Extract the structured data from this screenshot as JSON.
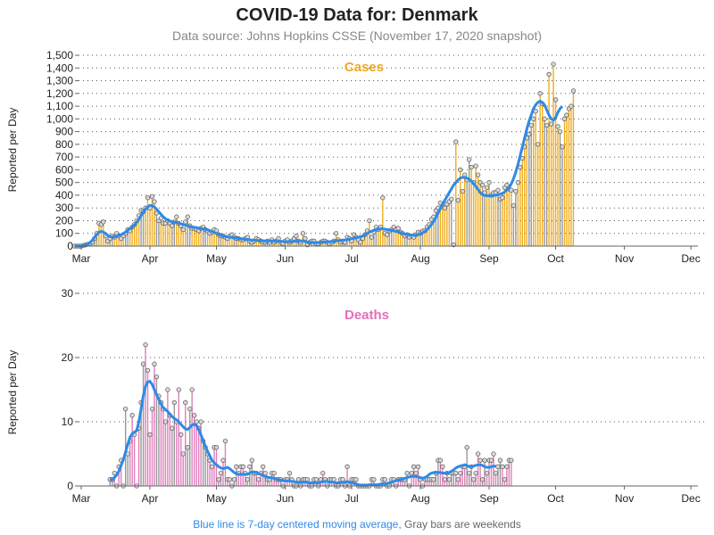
{
  "header": {
    "title": "COVID-19 Data for: Denmark",
    "subtitle": "Data source: Johns Hopkins CSSE (November 17, 2020 snapshot)"
  },
  "footer": {
    "blue_note": "Blue line is 7-day centered moving average,",
    "gray_note": "Gray bars are weekends"
  },
  "colors": {
    "cases": "#f0ad1e",
    "deaths": "#e07fbd",
    "average_line": "#2e8ae6",
    "weekend": "#999999"
  },
  "chart_data": [
    {
      "type": "bar",
      "title": "Cases",
      "ylabel": "Reported per Day",
      "xlabel": "",
      "ylim": [
        0,
        1500
      ],
      "yticks": [
        0,
        100,
        200,
        300,
        400,
        500,
        600,
        700,
        800,
        900,
        1000,
        1100,
        1200,
        1300,
        1400,
        1500
      ],
      "ytick_labels": [
        "0",
        "100",
        "200",
        "300",
        "400",
        "500",
        "600",
        "700",
        "800",
        "900",
        "1,000",
        "1,100",
        "1,200",
        "1,300",
        "1,400",
        "1,500"
      ],
      "xticks": [
        "Mar",
        "Apr",
        "May",
        "Jun",
        "Jul",
        "Aug",
        "Sep",
        "Oct",
        "Nov",
        "Dec"
      ],
      "grid": "horizontal dotted",
      "start_date": "2020-02-27",
      "series": [
        {
          "name": "Reported per Day",
          "values": [
            0,
            0,
            0,
            0,
            5,
            10,
            15,
            20,
            30,
            60,
            100,
            180,
            170,
            190,
            80,
            40,
            60,
            80,
            70,
            100,
            80,
            60,
            80,
            100,
            130,
            120,
            150,
            170,
            200,
            240,
            280,
            270,
            300,
            380,
            300,
            390,
            350,
            260,
            200,
            220,
            180,
            180,
            200,
            180,
            160,
            190,
            230,
            180,
            160,
            130,
            190,
            230,
            160,
            140,
            140,
            130,
            120,
            140,
            150,
            130,
            120,
            100,
            110,
            130,
            120,
            90,
            80,
            80,
            70,
            60,
            80,
            90,
            70,
            60,
            60,
            50,
            50,
            60,
            70,
            40,
            30,
            40,
            60,
            50,
            40,
            30,
            30,
            40,
            30,
            50,
            30,
            40,
            60,
            30,
            20,
            40,
            50,
            30,
            40,
            60,
            80,
            40,
            30,
            100,
            60,
            10,
            30,
            40,
            40,
            20,
            20,
            30,
            40,
            40,
            30,
            20,
            30,
            40,
            100,
            50,
            30,
            40,
            30,
            70,
            60,
            40,
            90,
            70,
            50,
            30,
            60,
            90,
            120,
            200,
            70,
            110,
            150,
            130,
            150,
            380,
            100,
            90,
            120,
            130,
            150,
            130,
            140,
            110,
            100,
            80,
            90,
            70,
            80,
            70,
            90,
            110,
            100,
            120,
            120,
            150,
            170,
            210,
            230,
            280,
            300,
            340,
            310,
            300,
            330,
            350,
            370,
            10,
            820,
            360,
            600,
            430,
            560,
            520,
            680,
            620,
            500,
            630,
            560,
            500,
            480,
            420,
            460,
            500,
            400,
            420,
            420,
            440,
            370,
            380,
            460,
            480,
            450,
            440,
            320,
            430,
            500,
            620,
            690,
            780,
            850,
            880,
            950,
            1000,
            1060,
            800,
            1200,
            1120,
            1000,
            950,
            1350,
            960,
            1430,
            1150,
            940,
            900,
            780,
            1000,
            1030,
            1080,
            1100,
            1220
          ]
        }
      ],
      "moving_average": [
        0,
        0,
        0,
        0,
        5,
        10,
        15,
        28,
        46,
        70,
        90,
        110,
        115,
        110,
        100,
        85,
        75,
        70,
        72,
        78,
        85,
        90,
        100,
        110,
        125,
        138,
        150,
        165,
        185,
        210,
        240,
        265,
        290,
        308,
        320,
        318,
        308,
        290,
        270,
        250,
        230,
        215,
        205,
        198,
        192,
        188,
        185,
        180,
        175,
        170,
        165,
        160,
        155,
        150,
        148,
        145,
        140,
        138,
        135,
        132,
        128,
        122,
        115,
        108,
        100,
        92,
        86,
        80,
        76,
        72,
        70,
        68,
        66,
        63,
        60,
        58,
        56,
        54,
        52,
        50,
        48,
        46,
        45,
        44,
        43,
        42,
        41,
        40,
        40,
        40,
        40,
        40,
        40,
        38,
        36,
        35,
        35,
        35,
        36,
        38,
        40,
        40,
        40,
        42,
        38,
        32,
        28,
        28,
        28,
        28,
        28,
        30,
        32,
        33,
        34,
        35,
        36,
        38,
        42,
        44,
        45,
        46,
        48,
        52,
        55,
        58,
        62,
        66,
        70,
        75,
        80,
        88,
        98,
        110,
        118,
        125,
        130,
        133,
        135,
        135,
        133,
        130,
        127,
        124,
        120,
        115,
        110,
        105,
        100,
        96,
        92,
        88,
        86,
        85,
        86,
        90,
        96,
        104,
        115,
        130,
        148,
        170,
        195,
        225,
        260,
        295,
        330,
        360,
        390,
        420,
        450,
        480,
        500,
        520,
        535,
        540,
        540,
        535,
        525,
        510,
        490,
        470,
        445,
        420,
        405,
        398,
        395,
        395,
        396,
        398,
        400,
        403,
        408,
        415,
        425,
        440,
        460,
        490,
        530,
        580,
        640,
        710,
        780,
        850,
        920,
        980,
        1030,
        1080,
        1110,
        1130,
        1140,
        1130,
        1110,
        1070,
        1030,
        1000,
        990,
        1010,
        1050,
        1080,
        1100
      ]
    },
    {
      "type": "bar",
      "title": "Deaths",
      "ylabel": "Reported per Day",
      "xlabel": "",
      "ylim": [
        0,
        30
      ],
      "yticks": [
        0,
        10,
        20,
        30
      ],
      "ytick_labels": [
        "0",
        "10",
        "20",
        "30"
      ],
      "xticks": [
        "Mar",
        "Apr",
        "May",
        "Jun",
        "Jul",
        "Aug",
        "Sep",
        "Oct",
        "Nov",
        "Dec"
      ],
      "grid": "horizontal dotted",
      "start_date": "2020-03-14",
      "series": [
        {
          "name": "Reported per Day",
          "values": [
            1,
            1,
            2,
            0,
            3,
            4,
            0,
            12,
            5,
            7,
            11,
            8,
            0,
            9,
            13,
            19,
            22,
            18,
            8,
            12,
            19,
            17,
            14,
            13,
            12,
            10,
            15,
            11,
            9,
            13,
            10,
            15,
            8,
            5,
            13,
            6,
            12,
            15,
            11,
            10,
            9,
            10,
            7,
            6,
            5,
            4,
            3,
            6,
            6,
            1,
            2,
            4,
            7,
            1,
            1,
            0,
            1,
            3,
            2,
            3,
            3,
            2,
            1,
            3,
            4,
            2,
            2,
            1,
            2,
            3,
            2,
            1,
            1,
            2,
            2,
            1,
            1,
            1,
            0,
            1,
            1,
            2,
            1,
            0,
            0,
            1,
            0,
            1,
            1,
            1,
            0,
            0,
            1,
            1,
            0,
            1,
            2,
            1,
            0,
            1,
            1,
            1,
            0,
            0,
            1,
            1,
            0,
            3,
            0,
            1,
            1,
            1,
            0,
            0,
            0,
            0,
            0,
            0,
            1,
            1,
            0,
            0,
            0,
            1,
            1,
            0,
            0,
            1,
            1,
            0,
            1,
            1,
            1,
            1,
            2,
            0,
            2,
            3,
            2,
            3,
            1,
            0,
            1,
            1,
            1,
            1,
            1,
            2,
            4,
            4,
            3,
            1,
            2,
            1,
            2,
            2,
            2,
            1,
            2,
            3,
            3,
            6,
            2,
            3,
            1,
            2,
            5,
            4,
            1,
            4,
            2,
            4,
            4,
            5,
            2,
            3,
            4,
            3,
            1,
            3,
            4,
            4
          ]
        }
      ],
      "moving_average": [
        1,
        1,
        1.3,
        1.7,
        2.3,
        3.2,
        4.1,
        5.3,
        6.5,
        7.6,
        8.1,
        8.4,
        8.6,
        10,
        12,
        14,
        15.5,
        16.2,
        16.3,
        15.8,
        15,
        14.2,
        13.5,
        12.8,
        12.2,
        11.9,
        11.6,
        11.2,
        10.8,
        10.5,
        10.3,
        10,
        9.6,
        9.2,
        8.9,
        8.8,
        9.1,
        9.5,
        9.6,
        9.4,
        8.8,
        8,
        7.1,
        6.2,
        5.4,
        4.7,
        4,
        3.6,
        3.3,
        3,
        2.8,
        2.7,
        2.8,
        2.9,
        2.7,
        2.4,
        2.1,
        1.9,
        1.8,
        1.8,
        1.8,
        1.8,
        1.8,
        2,
        2.2,
        2.2,
        2.1,
        1.9,
        1.8,
        1.6,
        1.5,
        1.4,
        1.3,
        1.3,
        1.2,
        1.1,
        1,
        0.9,
        0.8,
        0.8,
        0.8,
        0.8,
        0.7,
        0.7,
        0.6,
        0.6,
        0.6,
        0.6,
        0.6,
        0.6,
        0.5,
        0.5,
        0.5,
        0.5,
        0.5,
        0.6,
        0.7,
        0.7,
        0.7,
        0.6,
        0.6,
        0.6,
        0.5,
        0.5,
        0.5,
        0.6,
        0.6,
        0.7,
        0.6,
        0.5,
        0.4,
        0.3,
        0.2,
        0.1,
        0.1,
        0.1,
        0.1,
        0.2,
        0.2,
        0.2,
        0.2,
        0.2,
        0.3,
        0.3,
        0.3,
        0.4,
        0.5,
        0.6,
        0.7,
        0.8,
        0.9,
        1,
        1.1,
        1.2,
        1.3,
        1.4,
        1.5,
        1.5,
        1.5,
        1.4,
        1.3,
        1.2,
        1.3,
        1.5,
        1.8,
        2,
        2.1,
        2.1,
        2.1,
        2.1,
        2,
        2,
        2,
        2.1,
        2.3,
        2.5,
        2.8,
        3,
        3.1,
        3.2,
        3.3,
        3.2,
        3,
        3,
        3.1,
        3.2,
        3.3,
        3.3,
        3.2,
        3,
        2.9,
        2.9,
        3,
        3.1,
        3.1
      ]
    }
  ]
}
